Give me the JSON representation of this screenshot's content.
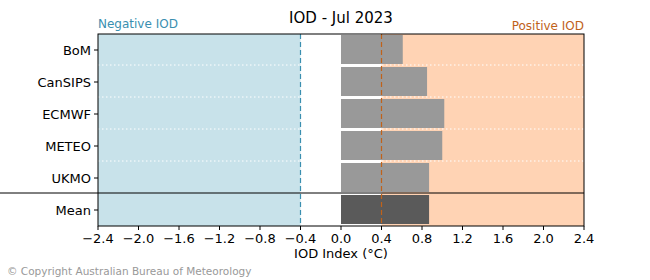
{
  "chart_data": {
    "type": "bar",
    "orientation": "horizontal",
    "title": "IOD - Jul 2023",
    "x_label": "IOD Index (°C)",
    "annotations": [
      "Negative IOD",
      "Positive IOD",
      "© Copyright Australian Bureau of Meteorology"
    ],
    "categories": [
      "BoM",
      "CanSIPS",
      "ECMWF",
      "METEO",
      "UKMO",
      "Mean"
    ],
    "values": [
      0.61,
      0.85,
      1.02,
      1.0,
      0.87,
      0.87
    ],
    "colors": [
      "#999999",
      "#999999",
      "#999999",
      "#999999",
      "#999999",
      "#5a5a5a"
    ],
    "thresholds": [
      -0.4,
      0.4
    ],
    "xlim": [
      -2.4,
      2.4
    ],
    "xticks": [
      {
        "value": -2.4,
        "label": "−2.4"
      },
      {
        "value": -2.0,
        "label": "−2.0"
      },
      {
        "value": -1.6,
        "label": "−1.6"
      },
      {
        "value": -1.2,
        "label": "−1.2"
      },
      {
        "value": -0.8,
        "label": "−0.8"
      },
      {
        "value": -0.4,
        "label": "−0.4"
      },
      {
        "value": 0.0,
        "label": "0.0"
      },
      0.4,
      0.8,
      1.2,
      1.6,
      {
        "value": 2.0,
        "label": "2.0"
      },
      2.4
    ],
    "grid": false
  }
}
